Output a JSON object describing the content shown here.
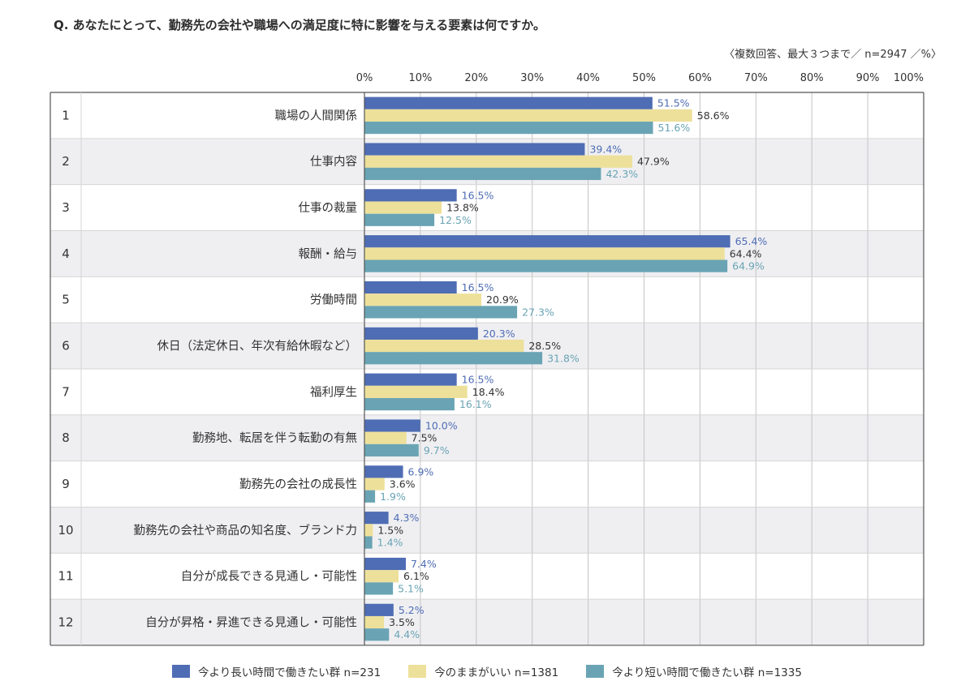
{
  "header": {
    "title": "Q. あなたにとって、勤務先の会社や職場への満足度に特に影響を与える要素は何ですか。",
    "note": "〈複数回答、最大３つまで／ n=2947 ／%〉"
  },
  "chart_data": {
    "type": "bar",
    "orientation": "horizontal",
    "title": "Q. あなたにとって、勤務先の会社や職場への満足度に特に影響を与える要素は何ですか。",
    "xlim": [
      0,
      100
    ],
    "x_ticks": [
      "0%",
      "10%",
      "20%",
      "30%",
      "40%",
      "50%",
      "60%",
      "70%",
      "80%",
      "90%",
      "100%"
    ],
    "grid": true,
    "legend_position": "bottom",
    "row_numbers": [
      "1",
      "2",
      "3",
      "4",
      "5",
      "6",
      "7",
      "8",
      "9",
      "10",
      "11",
      "12"
    ],
    "categories": [
      "職場の人間関係",
      "仕事内容",
      "仕事の裁量",
      "報酬・給与",
      "労働時間",
      "休日（法定休日、年次有給休暇など）",
      "福利厚生",
      "勤務地、転居を伴う転勤の有無",
      "勤務先の会社の成長性",
      "勤務先の会社や商品の知名度、ブランド力",
      "自分が成長できる見通し・可能性",
      "自分が昇格・昇進できる見通し・可能性"
    ],
    "series": [
      {
        "name": "今より長い時間で働きたい群 n=231",
        "color": "#4f6db4",
        "label_color": "#4f6db4",
        "values": [
          51.5,
          39.4,
          16.5,
          65.4,
          16.5,
          20.3,
          16.5,
          10.0,
          6.9,
          4.3,
          7.4,
          5.2
        ],
        "labels": [
          "51.5%",
          "39.4%",
          "16.5%",
          "65.4%",
          "16.5%",
          "20.3%",
          "16.5%",
          "10.0%",
          "6.9%",
          "4.3%",
          "7.4%",
          "5.2%"
        ]
      },
      {
        "name": "今のままがいい n=1381",
        "color": "#ede09a",
        "label_color": "#333333",
        "values": [
          58.6,
          47.9,
          13.8,
          64.4,
          20.9,
          28.5,
          18.4,
          7.5,
          3.6,
          1.5,
          6.1,
          3.5
        ],
        "labels": [
          "58.6%",
          "47.9%",
          "13.8%",
          "64.4%",
          "20.9%",
          "28.5%",
          "18.4%",
          "7.5%",
          "3.6%",
          "1.5%",
          "6.1%",
          "3.5%"
        ]
      },
      {
        "name": "今より短い時間で働きたい群 n=1335",
        "color": "#6aa4b4",
        "label_color": "#6aa4b4",
        "values": [
          51.6,
          42.3,
          12.5,
          64.9,
          27.3,
          31.8,
          16.1,
          9.7,
          1.9,
          1.4,
          5.1,
          4.4
        ],
        "labels": [
          "51.6%",
          "42.3%",
          "12.5%",
          "64.9%",
          "27.3%",
          "31.8%",
          "16.1%",
          "9.7%",
          "1.9%",
          "1.4%",
          "5.1%",
          "4.4%"
        ]
      }
    ]
  }
}
